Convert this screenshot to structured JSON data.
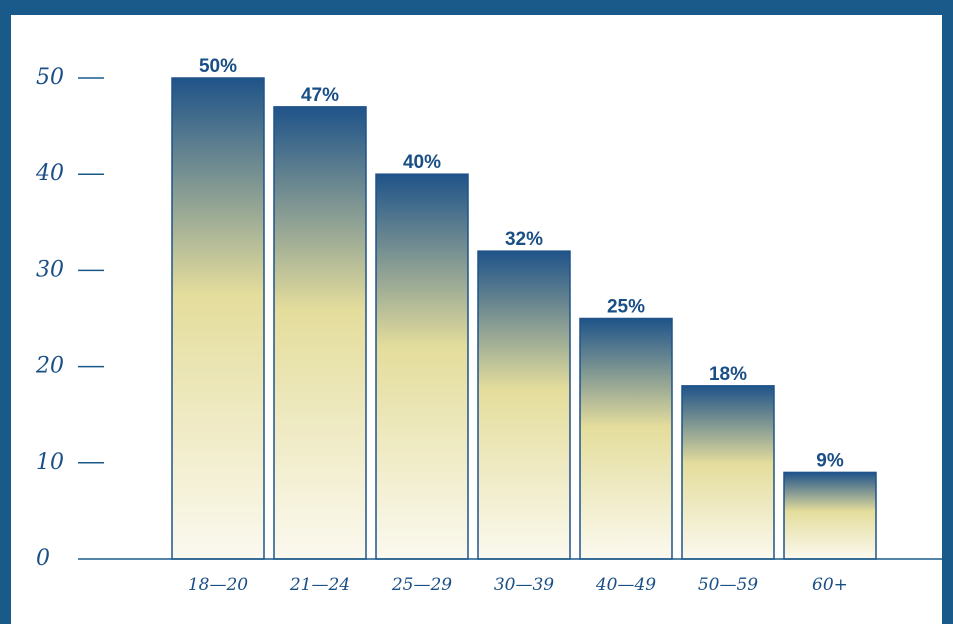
{
  "chart_data": {
    "type": "bar",
    "categories": [
      "18—20",
      "21—24",
      "25—29",
      "30—39",
      "40—49",
      "50—59",
      "60+"
    ],
    "values": [
      50,
      47,
      40,
      32,
      25,
      18,
      9
    ],
    "data_labels": [
      "50%",
      "47%",
      "40%",
      "32%",
      "25%",
      "18%",
      "9%"
    ],
    "yticks": [
      0,
      10,
      20,
      30,
      40,
      50
    ],
    "ylim": [
      0,
      50
    ],
    "title": "",
    "xlabel": "",
    "ylabel": "",
    "grid": false,
    "colors": {
      "frame": "#1a5a8a",
      "bar_top": "#1f5389",
      "bar_mid": "#e4dd9c",
      "bar_bottom": "#fbf9ef",
      "axis": "#1a5a8a",
      "text": "#1a4f86"
    }
  }
}
